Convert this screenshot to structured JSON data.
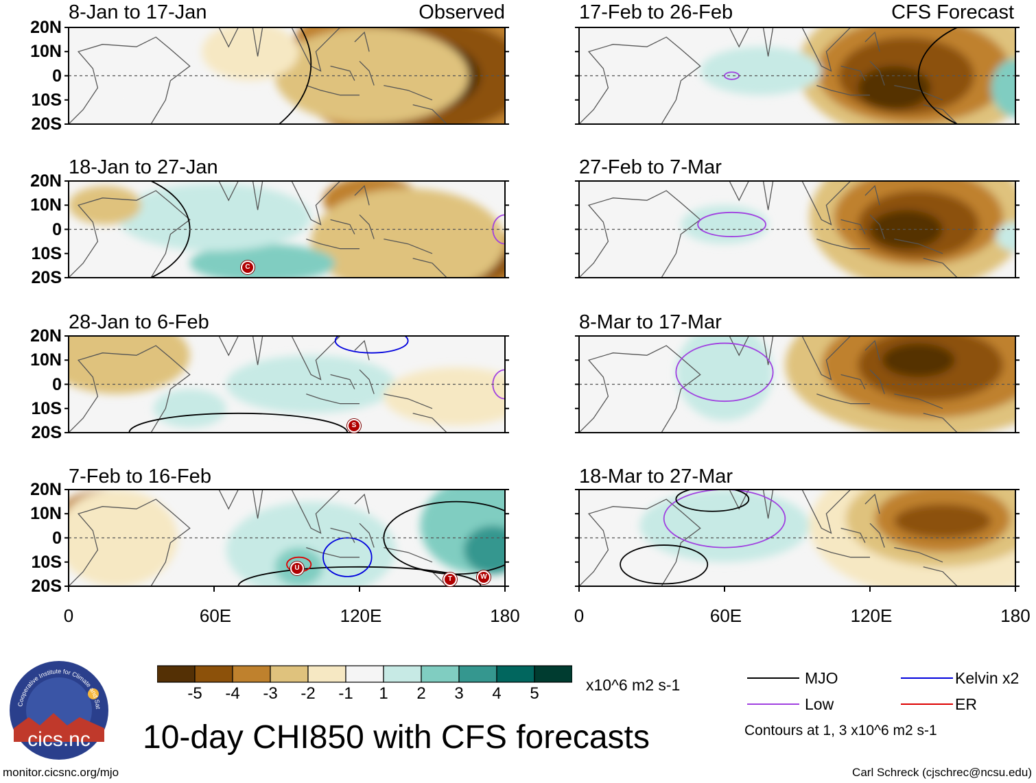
{
  "title": "10-day CHI850 with CFS forecasts",
  "lat_labels": [
    "20N",
    "10N",
    "0",
    "10S",
    "20S"
  ],
  "lon_labels": [
    "0",
    "60E",
    "120E",
    "180"
  ],
  "observed_tag": "Observed",
  "forecast_tag": "CFS Forecast",
  "observed_panels": [
    {
      "period": "8-Jan to 17-Jan"
    },
    {
      "period": "18-Jan to 27-Jan"
    },
    {
      "period": "28-Jan to 6-Feb"
    },
    {
      "period": "7-Feb to 16-Feb"
    }
  ],
  "forecast_panels": [
    {
      "period": "17-Feb to 26-Feb"
    },
    {
      "period": "27-Feb to 7-Mar"
    },
    {
      "period": "8-Mar to 17-Mar"
    },
    {
      "period": "18-Mar to 27-Mar"
    }
  ],
  "storm_markers": [
    {
      "panel": 1,
      "letter": "C"
    },
    {
      "panel": 2,
      "letter": "S"
    },
    {
      "panel": 3,
      "letter": "U"
    },
    {
      "panel": 3,
      "letter": "T"
    },
    {
      "panel": 3,
      "letter": "W"
    }
  ],
  "colorbar": {
    "labels": [
      "-5",
      "-4",
      "-3",
      "-2",
      "-1",
      "1",
      "2",
      "3",
      "4",
      "5"
    ],
    "colors": [
      "#543005",
      "#8c510a",
      "#bf812d",
      "#dfc27d",
      "#f6e8c3",
      "#f5f5f5",
      "#c7eae5",
      "#80cdc1",
      "#35978f",
      "#01665e",
      "#003c30"
    ],
    "units": "x10^6 m2 s-1"
  },
  "legend": {
    "items": [
      {
        "label": "MJO",
        "color": "#000000"
      },
      {
        "label": "Kelvin x2",
        "color": "#0000dd"
      },
      {
        "label": "Low",
        "color": "#a040e0"
      },
      {
        "label": "ER",
        "color": "#dd0000"
      }
    ],
    "note": "Contours at 1, 3 x10^6 m2 s-1"
  },
  "logo": {
    "text": "cics.nc",
    "ring_text": "Cooperative Institute for Climate and Satellites"
  },
  "footer_left": "monitor.cicsnc.org/mjo",
  "footer_right": "Carl Schreck (cjschrec@ncsu.edu)"
}
